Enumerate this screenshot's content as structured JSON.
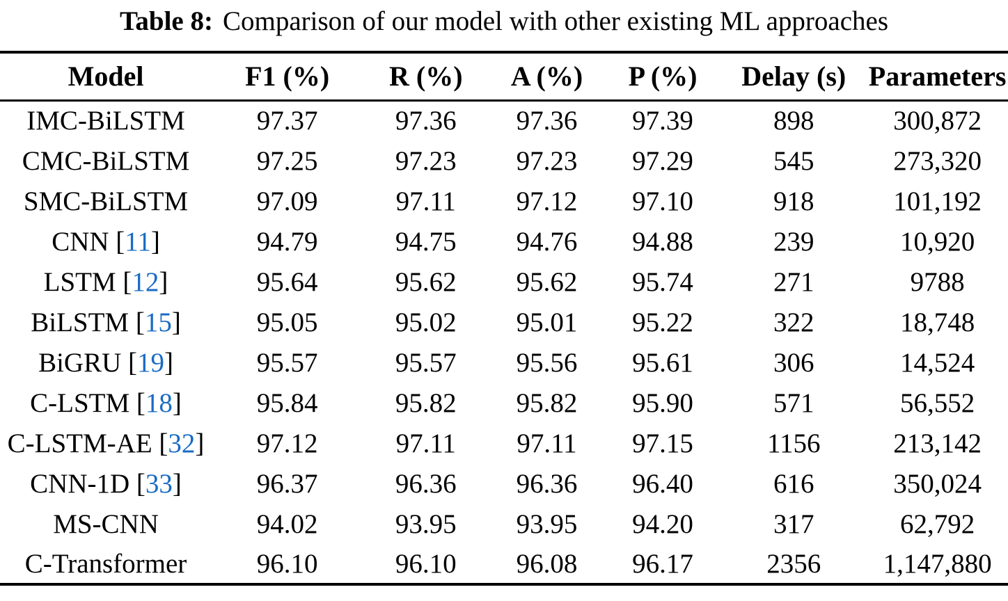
{
  "caption": {
    "label": "Table 8:",
    "text": "Comparison of our model with other existing ML approaches"
  },
  "columns": [
    "Model",
    "F1 (%)",
    "R (%)",
    "A (%)",
    "P (%)",
    "Delay (s)",
    "Parameters"
  ],
  "rows": [
    {
      "model": "IMC-BiLSTM",
      "ref": null,
      "f1": "97.37",
      "r": "97.36",
      "a": "97.36",
      "p": "97.39",
      "delay": "898",
      "params": "300,872"
    },
    {
      "model": "CMC-BiLSTM",
      "ref": null,
      "f1": "97.25",
      "r": "97.23",
      "a": "97.23",
      "p": "97.29",
      "delay": "545",
      "params": "273,320"
    },
    {
      "model": "SMC-BiLSTM",
      "ref": null,
      "f1": "97.09",
      "r": "97.11",
      "a": "97.12",
      "p": "97.10",
      "delay": "918",
      "params": "101,192"
    },
    {
      "model": "CNN",
      "ref": "11",
      "f1": "94.79",
      "r": "94.75",
      "a": "94.76",
      "p": "94.88",
      "delay": "239",
      "params": "10,920"
    },
    {
      "model": "LSTM",
      "ref": "12",
      "f1": "95.64",
      "r": "95.62",
      "a": "95.62",
      "p": "95.74",
      "delay": "271",
      "params": "9788"
    },
    {
      "model": "BiLSTM",
      "ref": "15",
      "f1": "95.05",
      "r": "95.02",
      "a": "95.01",
      "p": "95.22",
      "delay": "322",
      "params": "18,748"
    },
    {
      "model": "BiGRU",
      "ref": "19",
      "f1": "95.57",
      "r": "95.57",
      "a": "95.56",
      "p": "95.61",
      "delay": "306",
      "params": "14,524"
    },
    {
      "model": "C-LSTM",
      "ref": "18",
      "f1": "95.84",
      "r": "95.82",
      "a": "95.82",
      "p": "95.90",
      "delay": "571",
      "params": "56,552"
    },
    {
      "model": "C-LSTM-AE",
      "ref": "32",
      "f1": "97.12",
      "r": "97.11",
      "a": "97.11",
      "p": "97.15",
      "delay": "1156",
      "params": "213,142"
    },
    {
      "model": "CNN-1D",
      "ref": "33",
      "f1": "96.37",
      "r": "96.36",
      "a": "96.36",
      "p": "96.40",
      "delay": "616",
      "params": "350,024"
    },
    {
      "model": "MS-CNN",
      "ref": null,
      "f1": "94.02",
      "r": "93.95",
      "a": "93.95",
      "p": "94.20",
      "delay": "317",
      "params": "62,792"
    },
    {
      "model": "C-Transformer",
      "ref": null,
      "f1": "96.10",
      "r": "96.10",
      "a": "96.08",
      "p": "96.17",
      "delay": "2356",
      "params": "1,147,880"
    }
  ],
  "colors": {
    "citation": "#1a6bc4",
    "text": "#000000",
    "background": "#ffffff"
  }
}
